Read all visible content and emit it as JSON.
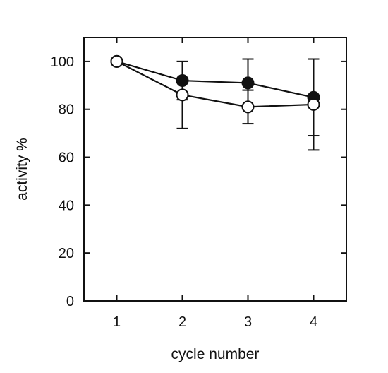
{
  "chart_data": {
    "type": "line",
    "title": "",
    "xlabel": "cycle number",
    "ylabel": "activity %",
    "x": [
      1,
      2,
      3,
      4
    ],
    "xlim": [
      0.5,
      4.5
    ],
    "ylim": [
      0,
      110
    ],
    "xticks": [
      "1",
      "2",
      "3",
      "4"
    ],
    "yticks": [
      "0",
      "20",
      "40",
      "60",
      "80",
      "100"
    ],
    "grid": false,
    "legend": "none",
    "series": [
      {
        "marker": "filled-circle",
        "color": "#111111",
        "values": [
          100,
          92,
          91,
          85
        ],
        "error": [
          0,
          8,
          10,
          16
        ]
      },
      {
        "marker": "open-circle",
        "color": "#111111",
        "values": [
          100,
          86,
          81,
          82
        ],
        "error": [
          0,
          14,
          7,
          19
        ]
      }
    ]
  }
}
